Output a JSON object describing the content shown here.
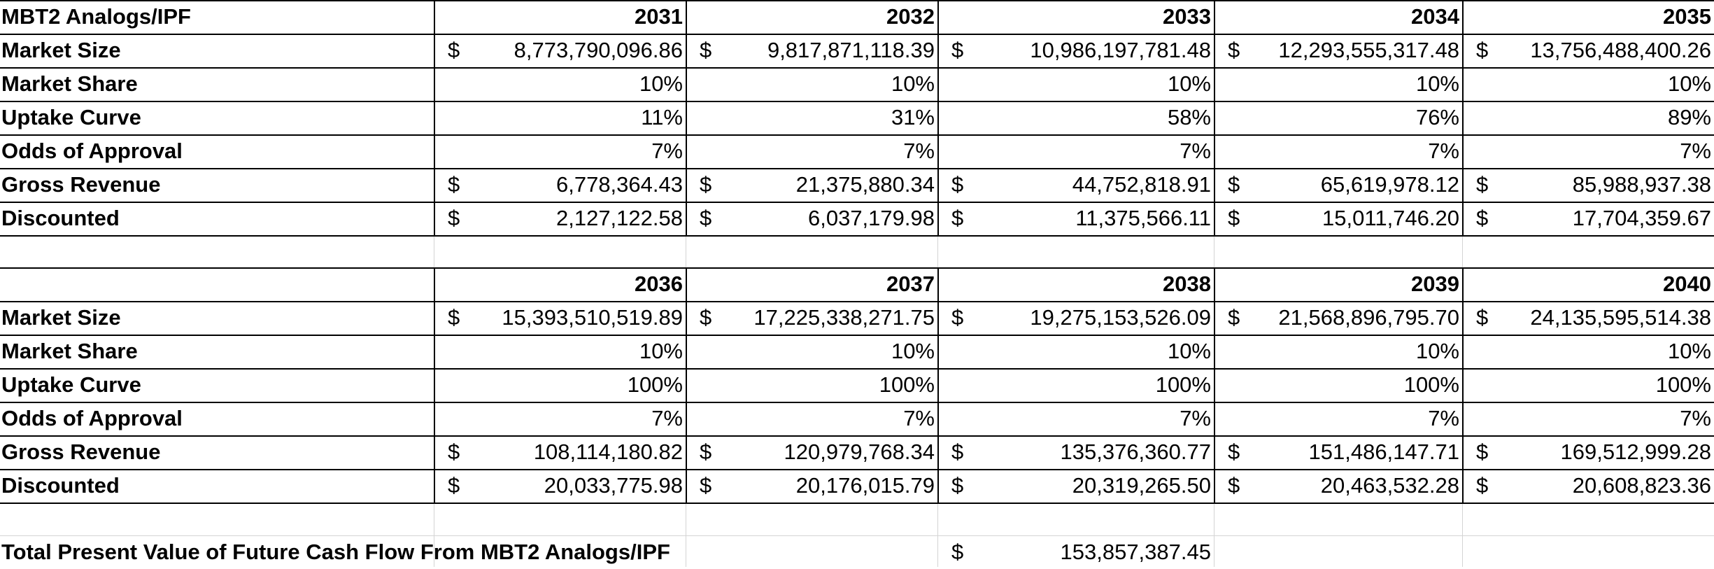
{
  "sheet_title": "MBT2 Analogs/IPF",
  "table1": {
    "years": [
      "2031",
      "2032",
      "2033",
      "2034",
      "2035"
    ],
    "rows": [
      {
        "label": "Market Size",
        "currency": true,
        "values": [
          "8,773,790,096.86",
          "9,817,871,118.39",
          "10,986,197,781.48",
          "12,293,555,317.48",
          "13,756,488,400.26"
        ]
      },
      {
        "label": "Market Share",
        "currency": false,
        "values": [
          "10%",
          "10%",
          "10%",
          "10%",
          "10%"
        ]
      },
      {
        "label": "Uptake Curve",
        "currency": false,
        "values": [
          "11%",
          "31%",
          "58%",
          "76%",
          "89%"
        ]
      },
      {
        "label": "Odds of Approval",
        "currency": false,
        "values": [
          "7%",
          "7%",
          "7%",
          "7%",
          "7%"
        ]
      },
      {
        "label": "Gross Revenue",
        "currency": true,
        "values": [
          "6,778,364.43",
          "21,375,880.34",
          "44,752,818.91",
          "65,619,978.12",
          "85,988,937.38"
        ]
      },
      {
        "label": "Discounted",
        "currency": true,
        "values": [
          "2,127,122.58",
          "6,037,179.98",
          "11,375,566.11",
          "15,011,746.20",
          "17,704,359.67"
        ]
      }
    ]
  },
  "table2": {
    "years": [
      "2036",
      "2037",
      "2038",
      "2039",
      "2040"
    ],
    "rows": [
      {
        "label": "Market Size",
        "currency": true,
        "values": [
          "15,393,510,519.89",
          "17,225,338,271.75",
          "19,275,153,526.09",
          "21,568,896,795.70",
          "24,135,595,514.38"
        ]
      },
      {
        "label": "Market Share",
        "currency": false,
        "values": [
          "10%",
          "10%",
          "10%",
          "10%",
          "10%"
        ]
      },
      {
        "label": "Uptake Curve",
        "currency": false,
        "values": [
          "100%",
          "100%",
          "100%",
          "100%",
          "100%"
        ]
      },
      {
        "label": "Odds of Approval",
        "currency": false,
        "values": [
          "7%",
          "7%",
          "7%",
          "7%",
          "7%"
        ]
      },
      {
        "label": "Gross Revenue",
        "currency": true,
        "values": [
          "108,114,180.82",
          "120,979,768.34",
          "135,376,360.77",
          "151,486,147.71",
          "169,512,999.28"
        ]
      },
      {
        "label": "Discounted",
        "currency": true,
        "values": [
          "20,033,775.98",
          "20,176,015.79",
          "20,319,265.50",
          "20,463,532.28",
          "20,608,823.36"
        ]
      }
    ]
  },
  "total": {
    "label": "Total Present Value of Future Cash Flow From MBT2 Analogs/IPF",
    "currency_symbol": "$",
    "value": "153,857,387.45"
  },
  "currency_symbol": "$",
  "colors": {
    "border": "#000000",
    "gridline": "#d4d4d4",
    "background": "#ffffff"
  }
}
